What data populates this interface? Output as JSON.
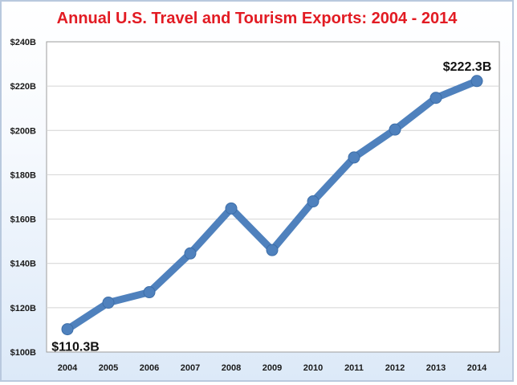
{
  "chart_data": {
    "type": "line",
    "title": "Annual U.S. Travel and Tourism Exports: 2004 - 2014",
    "xlabel": "",
    "ylabel": "",
    "ylim": [
      100,
      240
    ],
    "yticks": [
      "$100B",
      "$120B",
      "$140B",
      "$160B",
      "$180B",
      "$200B",
      "$220B",
      "$240B"
    ],
    "yticks_values": [
      100,
      120,
      140,
      160,
      180,
      200,
      220,
      240
    ],
    "categories": [
      "2004",
      "2005",
      "2006",
      "2007",
      "2008",
      "2009",
      "2010",
      "2011",
      "2012",
      "2013",
      "2014"
    ],
    "series": [
      {
        "values": [
          110.3,
          122.3,
          127.0,
          144.5,
          164.8,
          146.0,
          168.0,
          187.8,
          200.4,
          214.7,
          222.3
        ],
        "color": "#4f81bd"
      }
    ],
    "data_labels": [
      {
        "index": 0,
        "text": "$110.3B"
      },
      {
        "index": 10,
        "text": "$222.3B"
      }
    ],
    "grid": true,
    "legend": "none"
  }
}
